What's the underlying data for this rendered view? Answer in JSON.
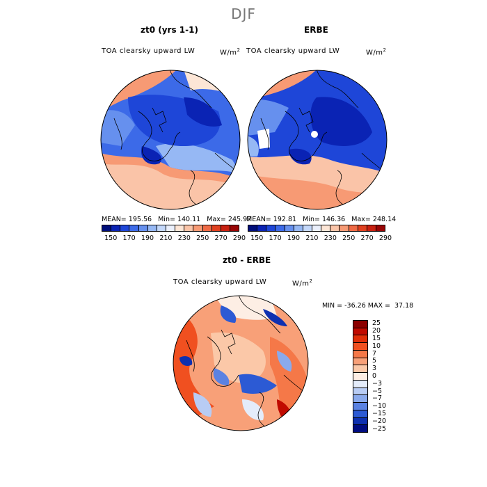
{
  "title": "DJF",
  "panels": [
    {
      "title": "zt0 (yrs 1-1)",
      "field": "TOA clearsky upward LW",
      "units": "W/m",
      "units_sup": "2",
      "stats": {
        "mean": "195.56",
        "min": "140.11",
        "max": "245.97"
      }
    },
    {
      "title": "ERBE",
      "field": "TOA clearsky upward LW",
      "units": "W/m",
      "units_sup": "2",
      "stats": {
        "mean": "192.81",
        "min": "146.36",
        "max": "248.14"
      }
    }
  ],
  "stat_labels": {
    "mean": "MEAN=",
    "min": "Min=",
    "max": "Max="
  },
  "colorbar_top": {
    "labels": [
      "150",
      "170",
      "190",
      "210",
      "230",
      "250",
      "270",
      "290"
    ],
    "colors": [
      "#000e7a",
      "#0a23b4",
      "#1e46d8",
      "#3c6ae8",
      "#6690ee",
      "#96b8f4",
      "#c4d8fa",
      "#ebf0fc",
      "#fde6d6",
      "#fac4a8",
      "#f79a74",
      "#ef6a45",
      "#e0401f",
      "#c82010",
      "#980505"
    ]
  },
  "diff_panel": {
    "title": "zt0 - ERBE",
    "field": "TOA clearsky upward LW",
    "units": "W/m",
    "units_sup": "2",
    "min_label": "MIN =",
    "min": "-36.26",
    "max_label": "MAX =",
    "max": "37.18"
  },
  "colorbar_diff": {
    "labels": [
      "25",
      "20",
      "15",
      "10",
      "7",
      "5",
      "3",
      "0",
      "−3",
      "−5",
      "−7",
      "−10",
      "−15",
      "−20",
      "−25"
    ],
    "colors": [
      "#8c0000",
      "#c00a00",
      "#e02e08",
      "#f05020",
      "#f57848",
      "#f8a078",
      "#fbc8a8",
      "#fdeee4",
      "#e4ecfa",
      "#b8ccf4",
      "#8aaaec",
      "#5a82e2",
      "#2c5ad4",
      "#0e30b0",
      "#000c80"
    ]
  },
  "chart_data": [
    {
      "type": "heatmap",
      "title": "zt0 (yrs 1-1)",
      "field": "TOA clearsky upward LW",
      "units": "W/m2",
      "projection": "polar stereographic (north pole)",
      "levels": [
        150,
        170,
        190,
        210,
        230,
        250,
        270,
        290
      ],
      "stats": {
        "mean": 195.56,
        "min": 140.11,
        "max": 245.97
      }
    },
    {
      "type": "heatmap",
      "title": "ERBE",
      "field": "TOA clearsky upward LW",
      "units": "W/m2",
      "projection": "polar stereographic (north pole)",
      "levels": [
        150,
        170,
        190,
        210,
        230,
        250,
        270,
        290
      ],
      "stats": {
        "mean": 192.81,
        "min": 146.36,
        "max": 248.14
      }
    },
    {
      "type": "heatmap",
      "title": "zt0 - ERBE",
      "field": "TOA clearsky upward LW",
      "units": "W/m2",
      "projection": "polar stereographic (north pole)",
      "levels": [
        -25,
        -20,
        -15,
        -10,
        -7,
        -5,
        -3,
        0,
        3,
        5,
        7,
        10,
        15,
        20,
        25
      ],
      "stats": {
        "min": -36.26,
        "max": 37.18
      }
    }
  ]
}
